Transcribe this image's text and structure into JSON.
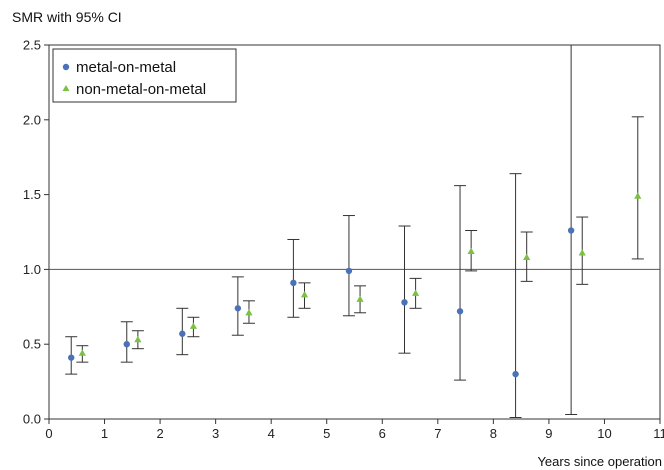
{
  "chart_data": {
    "type": "scatter",
    "title": "SMR with 95% CI",
    "xlabel": "Years since operation",
    "ylabel": "",
    "xlim": [
      0,
      11
    ],
    "ylim": [
      0,
      2.5
    ],
    "xticks": [
      "0",
      "1",
      "2",
      "3",
      "4",
      "5",
      "6",
      "7",
      "8",
      "9",
      "10",
      "11"
    ],
    "yticks": [
      "0.0",
      "0.5",
      "1.0",
      "1.5",
      "2.0",
      "2.5"
    ],
    "reference_line": 1.0,
    "grid": false,
    "legend_position": "top-left",
    "series": [
      {
        "name": "metal-on-metal",
        "marker": "circle",
        "color": "#4a72b8",
        "points": [
          {
            "x": 0.4,
            "y": 0.41,
            "lo": 0.3,
            "hi": 0.55
          },
          {
            "x": 1.4,
            "y": 0.5,
            "lo": 0.38,
            "hi": 0.65
          },
          {
            "x": 2.4,
            "y": 0.57,
            "lo": 0.43,
            "hi": 0.74
          },
          {
            "x": 3.4,
            "y": 0.74,
            "lo": 0.56,
            "hi": 0.95
          },
          {
            "x": 4.4,
            "y": 0.91,
            "lo": 0.68,
            "hi": 1.2
          },
          {
            "x": 5.4,
            "y": 0.99,
            "lo": 0.69,
            "hi": 1.36
          },
          {
            "x": 6.4,
            "y": 0.78,
            "lo": 0.44,
            "hi": 1.29
          },
          {
            "x": 7.4,
            "y": 0.72,
            "lo": 0.26,
            "hi": 1.56
          },
          {
            "x": 8.4,
            "y": 0.3,
            "lo": 0.01,
            "hi": 1.64
          },
          {
            "x": 9.4,
            "y": 1.26,
            "lo": 0.03,
            "hi": 2.5
          }
        ]
      },
      {
        "name": "non-metal-on-metal",
        "marker": "triangle",
        "color": "#7cc142",
        "points": [
          {
            "x": 0.6,
            "y": 0.44,
            "lo": 0.38,
            "hi": 0.49
          },
          {
            "x": 1.6,
            "y": 0.53,
            "lo": 0.47,
            "hi": 0.59
          },
          {
            "x": 2.6,
            "y": 0.62,
            "lo": 0.55,
            "hi": 0.68
          },
          {
            "x": 3.6,
            "y": 0.71,
            "lo": 0.64,
            "hi": 0.79
          },
          {
            "x": 4.6,
            "y": 0.83,
            "lo": 0.74,
            "hi": 0.91
          },
          {
            "x": 5.6,
            "y": 0.8,
            "lo": 0.71,
            "hi": 0.89
          },
          {
            "x": 6.6,
            "y": 0.84,
            "lo": 0.74,
            "hi": 0.94
          },
          {
            "x": 7.6,
            "y": 1.12,
            "lo": 0.99,
            "hi": 1.26
          },
          {
            "x": 8.6,
            "y": 1.08,
            "lo": 0.92,
            "hi": 1.25
          },
          {
            "x": 9.6,
            "y": 1.11,
            "lo": 0.9,
            "hi": 1.35
          },
          {
            "x": 10.6,
            "y": 1.49,
            "lo": 1.07,
            "hi": 2.02
          }
        ]
      }
    ]
  }
}
